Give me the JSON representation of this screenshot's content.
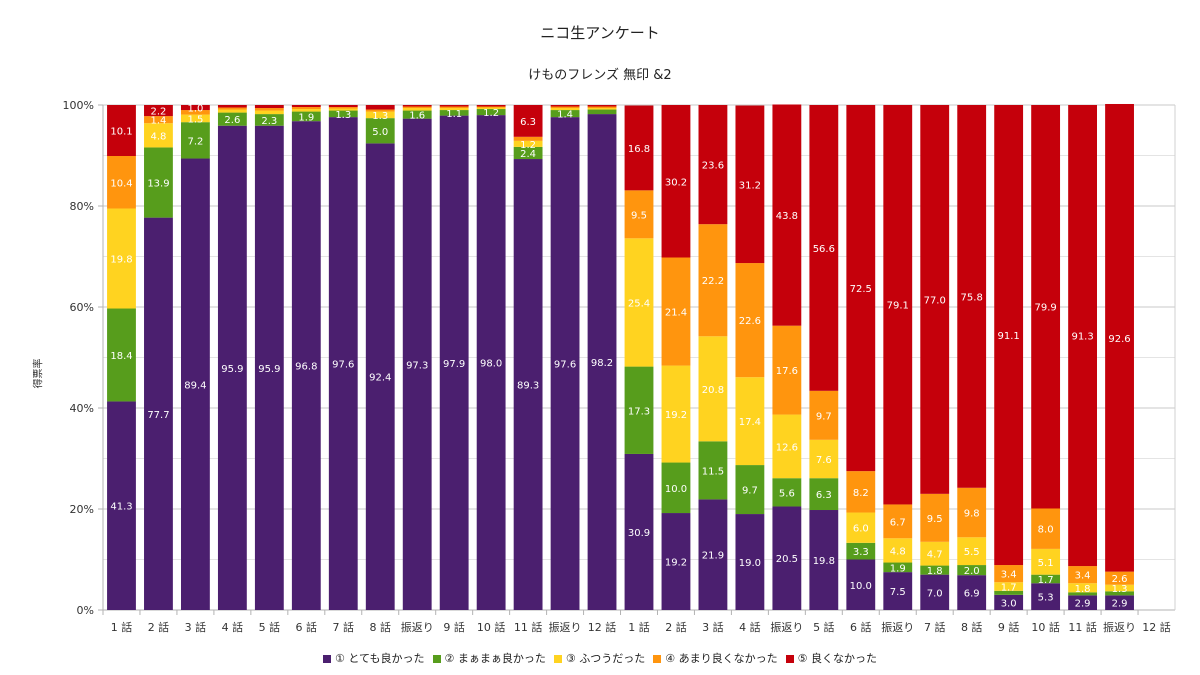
{
  "chart_data": {
    "type": "bar",
    "stacked": "percent",
    "title": "ニコ生アンケート",
    "subtitle": "けものフレンズ 無印 &2",
    "xlabel": "",
    "ylabel": "得票率",
    "ylim": [
      0,
      100
    ],
    "yticks": [
      "0%",
      "20%",
      "40%",
      "60%",
      "80%",
      "100%"
    ],
    "grid": true,
    "legend_position": "bottom",
    "categories": [
      "1 話",
      "2 話",
      "3 話",
      "4 話",
      "5 話",
      "6 話",
      "7 話",
      "8 話",
      "振返り",
      "9 話",
      "10 話",
      "11 話",
      "振返り",
      "12 話",
      "1 話",
      "2 話",
      "3 話",
      "4 話",
      "振返り",
      "5 話",
      "6 話",
      "振返り",
      "7 話",
      "8 話",
      "9 話",
      "10 話",
      "11 話",
      "振返り",
      "12 話"
    ],
    "series": [
      {
        "name": "① とても良かった",
        "color": "#4b1f6f",
        "values": [
          41.3,
          77.7,
          89.4,
          95.9,
          95.9,
          96.8,
          97.6,
          92.4,
          97.3,
          97.9,
          98.0,
          89.3,
          97.6,
          98.2,
          30.9,
          19.2,
          21.9,
          19.0,
          20.5,
          19.8,
          10.0,
          7.5,
          7.0,
          6.9,
          3.0,
          5.3,
          2.9,
          2.9,
          null
        ]
      },
      {
        "name": "② まぁまぁ良かった",
        "color": "#579d1c",
        "values": [
          18.4,
          13.9,
          7.2,
          2.6,
          2.3,
          1.9,
          1.3,
          5.0,
          1.6,
          1.1,
          1.2,
          2.4,
          1.4,
          0.9,
          17.3,
          10.0,
          11.5,
          9.7,
          5.6,
          6.3,
          3.3,
          1.9,
          1.8,
          2.0,
          0.8,
          1.7,
          0.6,
          0.8,
          null
        ]
      },
      {
        "name": "③ ふつうだった",
        "color": "#ffd320",
        "values": [
          19.8,
          4.8,
          1.5,
          0.6,
          0.7,
          0.5,
          0.4,
          1.3,
          0.5,
          0.4,
          0.3,
          1.2,
          0.4,
          0.3,
          25.4,
          19.2,
          20.8,
          17.4,
          12.6,
          7.6,
          6.0,
          4.8,
          4.7,
          5.5,
          1.7,
          5.1,
          1.8,
          1.3,
          null
        ]
      },
      {
        "name": "④ あまり良くなかった",
        "color": "#ff950e",
        "values": [
          10.4,
          1.4,
          0.9,
          0.4,
          0.5,
          0.4,
          0.3,
          0.4,
          0.3,
          0.3,
          0.2,
          0.8,
          0.3,
          0.3,
          9.5,
          21.4,
          22.2,
          22.6,
          17.6,
          9.7,
          8.2,
          6.7,
          9.5,
          9.8,
          3.4,
          8.0,
          3.4,
          2.6,
          null
        ]
      },
      {
        "name": "⑤ 良くなかった",
        "color": "#c5000b",
        "values": [
          10.1,
          2.2,
          1.0,
          0.5,
          0.6,
          0.4,
          0.4,
          0.9,
          0.3,
          0.3,
          0.3,
          6.3,
          0.3,
          0.3,
          16.8,
          30.2,
          23.6,
          31.2,
          43.8,
          56.6,
          72.5,
          79.1,
          77.0,
          75.8,
          91.1,
          79.9,
          91.3,
          92.6,
          null
        ]
      }
    ],
    "label_min": 1.0
  }
}
